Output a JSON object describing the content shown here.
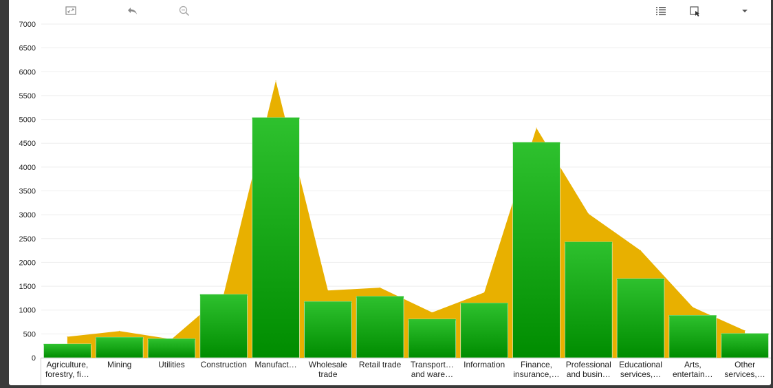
{
  "toolbar": {
    "icons": [
      "expand-icon",
      "undo-icon",
      "zoom-out-icon",
      "list-icon",
      "select-icon",
      "dropdown-icon"
    ]
  },
  "colors": {
    "bar_top": "#2ec12e",
    "bar_bottom": "#008c00",
    "area": "#e8b000",
    "grid": "#eeeeee"
  },
  "chart_data": {
    "type": "bar",
    "ylim": [
      0,
      7000
    ],
    "yticks": [
      0,
      500,
      1000,
      1500,
      2000,
      2500,
      3000,
      3500,
      4000,
      4500,
      5000,
      5500,
      6000,
      6500,
      7000
    ],
    "categories": [
      [
        "Agriculture,",
        "forestry, fi…"
      ],
      [
        "Mining"
      ],
      [
        "Utilities"
      ],
      [
        "Construction"
      ],
      [
        "Manufact…"
      ],
      [
        "Wholesale",
        "trade"
      ],
      [
        "Retail trade"
      ],
      [
        "Transport…",
        "and ware…"
      ],
      [
        "Information"
      ],
      [
        "Finance,",
        "insurance,…"
      ],
      [
        "Professional",
        "and busin…"
      ],
      [
        "Educational",
        "services,…"
      ],
      [
        "Arts,",
        "entertain…"
      ],
      [
        "Other",
        "services,…"
      ]
    ],
    "series": [
      {
        "type": "bar",
        "values": [
          290,
          430,
          400,
          1330,
          5040,
          1180,
          1290,
          810,
          1150,
          4520,
          2430,
          1660,
          890,
          510
        ]
      },
      {
        "type": "area",
        "values": [
          440,
          560,
          390,
          1330,
          5810,
          1410,
          1470,
          950,
          1370,
          4820,
          3020,
          2250,
          1060,
          570
        ]
      }
    ]
  }
}
